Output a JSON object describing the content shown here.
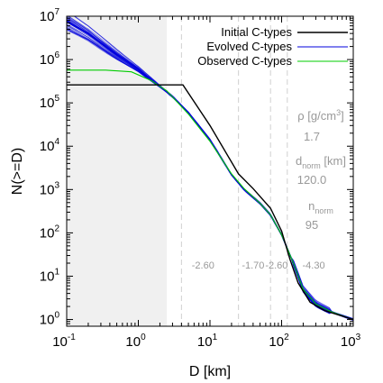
{
  "chart_data": {
    "type": "line",
    "title": "",
    "xlabel": "D [km]",
    "ylabel": "N(>=D)",
    "xscale": "log",
    "yscale": "log",
    "xlim": [
      0.1,
      1000
    ],
    "ylim": [
      0.7,
      10000000
    ],
    "x_tick_labels": [
      {
        "value": 0.1,
        "base": "10",
        "exp": "-1"
      },
      {
        "value": 1,
        "base": "10",
        "exp": "0"
      },
      {
        "value": 10,
        "base": "10",
        "exp": "1"
      },
      {
        "value": 100,
        "base": "10",
        "exp": "2"
      },
      {
        "value": 1000,
        "base": "10",
        "exp": "3"
      }
    ],
    "y_tick_labels": [
      {
        "value": 1,
        "base": "10",
        "exp": "0"
      },
      {
        "value": 10,
        "base": "10",
        "exp": "1"
      },
      {
        "value": 100,
        "base": "10",
        "exp": "2"
      },
      {
        "value": 1000,
        "base": "10",
        "exp": "3"
      },
      {
        "value": 10000,
        "base": "10",
        "exp": "4"
      },
      {
        "value": 100000,
        "base": "10",
        "exp": "5"
      },
      {
        "value": 1000000,
        "base": "10",
        "exp": "6"
      },
      {
        "value": 10000000,
        "base": "10",
        "exp": "7"
      }
    ],
    "grid": false,
    "legend_position": "top-right",
    "shaded_region": {
      "x_from": 0.1,
      "x_to": 2.5,
      "color": "#f0f0f0"
    },
    "break_lines": [
      4,
      25,
      70,
      120
    ],
    "slope_labels": [
      {
        "text": "-2.60",
        "x": 8,
        "y": 15
      },
      {
        "text": "-1.70",
        "x": 40,
        "y": 15
      },
      {
        "text": "-2.60",
        "x": 85,
        "y": 15
      },
      {
        "text": "-4.30",
        "x": 280,
        "y": 15
      }
    ],
    "series": [
      {
        "name": "Initial C-types",
        "color": "#000000",
        "x": [
          0.1,
          4.2,
          10,
          25,
          40,
          70,
          100,
          130,
          170,
          250,
          400,
          700,
          1000
        ],
        "y": [
          260000,
          260000,
          30000,
          2300,
          1050,
          370,
          110,
          25,
          7,
          2.5,
          1.6,
          1.2,
          1.0
        ]
      },
      {
        "name": "Evolved C-types",
        "color": "#0000dd",
        "x": [
          0.1,
          0.2,
          0.5,
          1,
          2,
          3,
          5,
          10,
          20,
          30,
          50,
          70,
          100,
          150,
          200,
          300,
          500,
          1000
        ],
        "y": [
          8000000,
          4000000,
          1300000,
          600000,
          240000,
          140000,
          60000,
          14000,
          2200,
          1000,
          480,
          260,
          90,
          18,
          5,
          2.3,
          1.5,
          1.0
        ]
      },
      {
        "name": "Observed C-types",
        "color": "#00cc00",
        "x": [
          0.1,
          0.35,
          0.8,
          1.5,
          2.5,
          5,
          10,
          20,
          30,
          50,
          70,
          100,
          150,
          200,
          300,
          500,
          1000
        ],
        "y": [
          570000,
          570000,
          520000,
          330000,
          190000,
          55000,
          13000,
          2300,
          1050,
          480,
          260,
          90,
          18,
          5,
          2.3,
          1.5,
          1.0
        ]
      }
    ],
    "annotations": [
      {
        "kind": "rho",
        "label": "ρ [g/cm",
        "sup": "3",
        "close": "]",
        "value": "1.7"
      },
      {
        "kind": "dnorm",
        "label": "d",
        "sub": "norm",
        "suffix": " [km]",
        "value": "120.0"
      },
      {
        "kind": "nnorm",
        "label": "n",
        "sub": "norm",
        "suffix": "",
        "value": "95"
      }
    ]
  }
}
